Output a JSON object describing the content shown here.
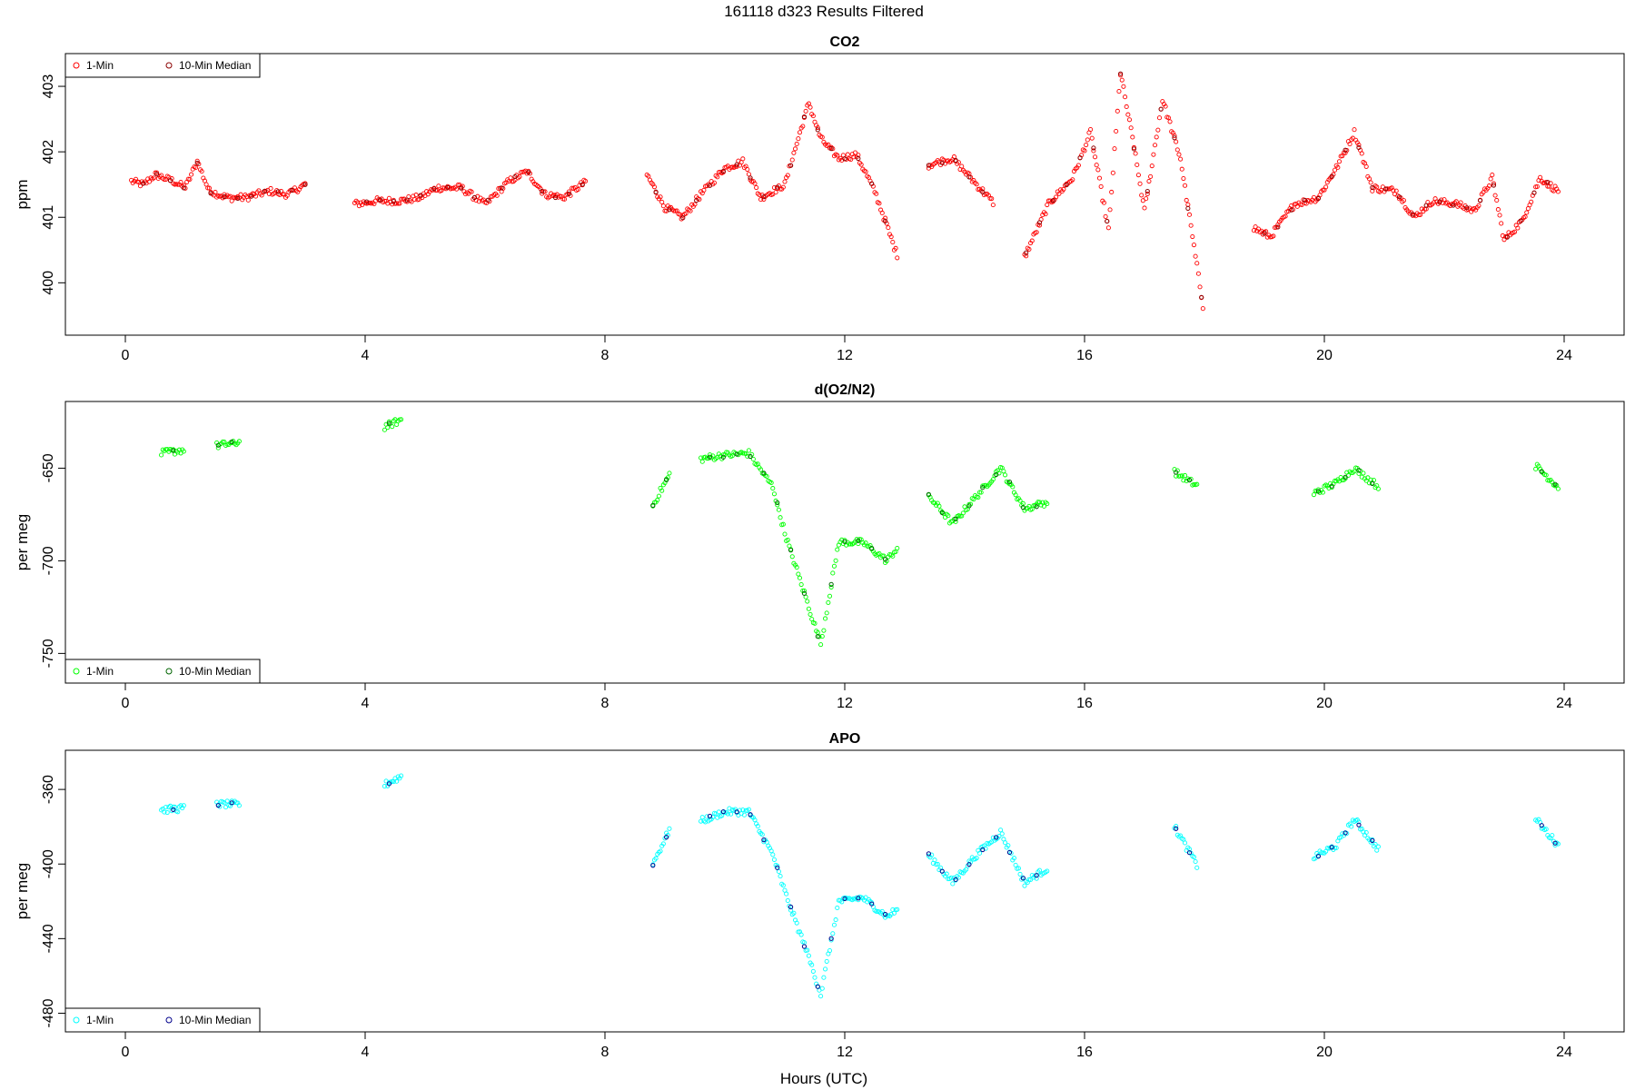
{
  "figure": {
    "title": "161118   d323   Results Filtered",
    "xlabel": "Hours (UTC)"
  },
  "chart_data": [
    {
      "type": "scatter",
      "title": "CO2",
      "ylabel": "ppm",
      "xlim": [
        -1,
        25
      ],
      "ylim": [
        399.2,
        403.5
      ],
      "x_ticks": [
        0,
        4,
        8,
        12,
        16,
        20,
        24
      ],
      "y_ticks": [
        400,
        401,
        402,
        403
      ],
      "legend_position": "top-left",
      "colors": {
        "one_min": "#ff0000",
        "median": "#8b0000"
      },
      "series": [
        {
          "name": "1-Min",
          "key": "one_min",
          "profile": [
            [
              0.1,
              401.55
            ],
            [
              0.3,
              401.5
            ],
            [
              0.5,
              401.65
            ],
            [
              0.8,
              401.55
            ],
            [
              1.0,
              401.45
            ],
            [
              1.2,
              401.85
            ],
            [
              1.4,
              401.4
            ],
            [
              1.7,
              401.3
            ],
            [
              2.0,
              401.3
            ],
            [
              2.4,
              401.4
            ],
            [
              2.7,
              401.35
            ],
            [
              3.0,
              401.5
            ],
            [
              3.8,
              401.2
            ],
            [
              4.2,
              401.25
            ],
            [
              4.6,
              401.25
            ],
            [
              4.9,
              401.3
            ],
            [
              5.2,
              401.45
            ],
            [
              5.6,
              401.45
            ],
            [
              6.0,
              401.2
            ],
            [
              6.4,
              401.55
            ],
            [
              6.7,
              401.7
            ],
            [
              7.0,
              401.35
            ],
            [
              7.3,
              401.3
            ],
            [
              7.7,
              401.55
            ],
            [
              8.7,
              401.65
            ],
            [
              9.0,
              401.15
            ],
            [
              9.3,
              401.0
            ],
            [
              9.6,
              401.35
            ],
            [
              10.0,
              401.75
            ],
            [
              10.3,
              401.85
            ],
            [
              10.6,
              401.3
            ],
            [
              11.0,
              401.5
            ],
            [
              11.4,
              402.75
            ],
            [
              11.6,
              402.2
            ],
            [
              11.9,
              401.9
            ],
            [
              12.2,
              401.95
            ],
            [
              12.5,
              401.4
            ],
            [
              12.9,
              400.35
            ],
            [
              13.4,
              401.8
            ],
            [
              13.8,
              401.9
            ],
            [
              14.2,
              401.5
            ],
            [
              14.5,
              401.2
            ],
            [
              15.0,
              400.4
            ],
            [
              15.4,
              401.2
            ],
            [
              15.8,
              401.6
            ],
            [
              16.1,
              402.3
            ],
            [
              16.4,
              400.8
            ],
            [
              16.6,
              403.2
            ],
            [
              16.8,
              402.2
            ],
            [
              17.0,
              401.1
            ],
            [
              17.3,
              402.8
            ],
            [
              17.6,
              401.9
            ],
            [
              18.0,
              399.5
            ],
            [
              18.8,
              400.85
            ],
            [
              19.1,
              400.7
            ],
            [
              19.5,
              401.2
            ],
            [
              19.9,
              401.3
            ],
            [
              20.2,
              401.75
            ],
            [
              20.5,
              402.3
            ],
            [
              20.8,
              401.45
            ],
            [
              21.2,
              401.4
            ],
            [
              21.5,
              401.0
            ],
            [
              21.8,
              401.25
            ],
            [
              22.2,
              401.2
            ],
            [
              22.5,
              401.1
            ],
            [
              22.8,
              401.6
            ],
            [
              23.0,
              400.65
            ],
            [
              23.3,
              400.95
            ],
            [
              23.6,
              401.6
            ],
            [
              23.9,
              401.4
            ]
          ]
        },
        {
          "name": "10-Min Median",
          "key": "median"
        }
      ]
    },
    {
      "type": "scatter",
      "title": "d(O2/N2)",
      "ylabel": "per meg",
      "xlim": [
        -1,
        25
      ],
      "ylim": [
        -766,
        -614
      ],
      "x_ticks": [
        0,
        4,
        8,
        12,
        16,
        20,
        24
      ],
      "y_ticks": [
        -650,
        -700,
        -750
      ],
      "legend_position": "bottom-left",
      "colors": {
        "one_min": "#00ff00",
        "median": "#006400"
      },
      "series": [
        {
          "name": "1-Min",
          "key": "one_min",
          "profile": [
            [
              0.1,
              -645
            ],
            [
              0.6,
              -642
            ],
            [
              1.0,
              -640
            ],
            [
              1.5,
              -638
            ],
            [
              1.9,
              -636
            ],
            [
              2.5,
              -632
            ],
            [
              3.0,
              -632
            ],
            [
              3.8,
              -632
            ],
            [
              4.3,
              -628
            ],
            [
              4.6,
              -624
            ],
            [
              5.2,
              -628
            ],
            [
              5.8,
              -634
            ],
            [
              6.4,
              -632
            ],
            [
              7.0,
              -636
            ],
            [
              7.7,
              -632
            ],
            [
              8.8,
              -670
            ],
            [
              9.1,
              -652
            ],
            [
              9.6,
              -645
            ],
            [
              10.0,
              -643
            ],
            [
              10.4,
              -642
            ],
            [
              10.8,
              -660
            ],
            [
              11.0,
              -685
            ],
            [
              11.4,
              -725
            ],
            [
              11.6,
              -745
            ],
            [
              11.9,
              -690
            ],
            [
              12.3,
              -690
            ],
            [
              12.7,
              -700
            ],
            [
              12.9,
              -692
            ],
            [
              13.4,
              -665
            ],
            [
              13.8,
              -680
            ],
            [
              14.2,
              -665
            ],
            [
              14.6,
              -650
            ],
            [
              15.0,
              -672
            ],
            [
              15.4,
              -668
            ],
            [
              16.0,
              -662
            ],
            [
              16.5,
              -660
            ],
            [
              17.0,
              -658
            ],
            [
              17.5,
              -652
            ],
            [
              17.9,
              -660
            ],
            [
              18.8,
              -676
            ],
            [
              19.3,
              -672
            ],
            [
              19.8,
              -664
            ],
            [
              20.2,
              -658
            ],
            [
              20.5,
              -650
            ],
            [
              20.9,
              -660
            ],
            [
              21.5,
              -662
            ],
            [
              22.0,
              -664
            ],
            [
              22.5,
              -658
            ],
            [
              23.0,
              -656
            ],
            [
              23.5,
              -648
            ],
            [
              23.9,
              -660
            ]
          ]
        },
        {
          "name": "10-Min Median",
          "key": "median"
        }
      ]
    },
    {
      "type": "scatter",
      "title": "APO",
      "ylabel": "per meg",
      "xlim": [
        -1,
        25
      ],
      "ylim": [
        -490,
        -339
      ],
      "x_ticks": [
        0,
        4,
        8,
        12,
        16,
        20,
        24
      ],
      "y_ticks": [
        -360,
        -400,
        -440,
        -480
      ],
      "legend_position": "bottom-left",
      "colors": {
        "one_min": "#00ffff",
        "median": "#00008b"
      },
      "series": [
        {
          "name": "1-Min",
          "key": "one_min",
          "profile": [
            [
              0.1,
              -372
            ],
            [
              0.6,
              -371
            ],
            [
              1.0,
              -370
            ],
            [
              1.5,
              -368
            ],
            [
              1.9,
              -368
            ],
            [
              2.5,
              -363
            ],
            [
              3.0,
              -360
            ],
            [
              3.8,
              -362
            ],
            [
              4.3,
              -358
            ],
            [
              4.6,
              -353
            ],
            [
              5.2,
              -360
            ],
            [
              5.8,
              -366
            ],
            [
              6.4,
              -364
            ],
            [
              7.0,
              -368
            ],
            [
              7.7,
              -361
            ],
            [
              8.8,
              -400
            ],
            [
              9.1,
              -380
            ],
            [
              9.6,
              -377
            ],
            [
              10.0,
              -372
            ],
            [
              10.4,
              -372
            ],
            [
              10.8,
              -395
            ],
            [
              11.0,
              -415
            ],
            [
              11.4,
              -450
            ],
            [
              11.6,
              -470
            ],
            [
              11.9,
              -420
            ],
            [
              12.3,
              -418
            ],
            [
              12.7,
              -428
            ],
            [
              12.9,
              -424
            ],
            [
              13.4,
              -395
            ],
            [
              13.8,
              -410
            ],
            [
              14.2,
              -395
            ],
            [
              14.6,
              -383
            ],
            [
              15.0,
              -410
            ],
            [
              15.4,
              -402
            ],
            [
              16.0,
              -394
            ],
            [
              16.5,
              -388
            ],
            [
              17.0,
              -388
            ],
            [
              17.5,
              -380
            ],
            [
              17.9,
              -402
            ],
            [
              18.8,
              -410
            ],
            [
              19.3,
              -404
            ],
            [
              19.8,
              -397
            ],
            [
              20.2,
              -390
            ],
            [
              20.5,
              -376
            ],
            [
              20.9,
              -392
            ],
            [
              21.5,
              -394
            ],
            [
              22.0,
              -396
            ],
            [
              22.5,
              -390
            ],
            [
              23.0,
              -388
            ],
            [
              23.5,
              -375
            ],
            [
              23.9,
              -390
            ]
          ]
        },
        {
          "name": "10-Min Median",
          "key": "median"
        }
      ]
    }
  ]
}
